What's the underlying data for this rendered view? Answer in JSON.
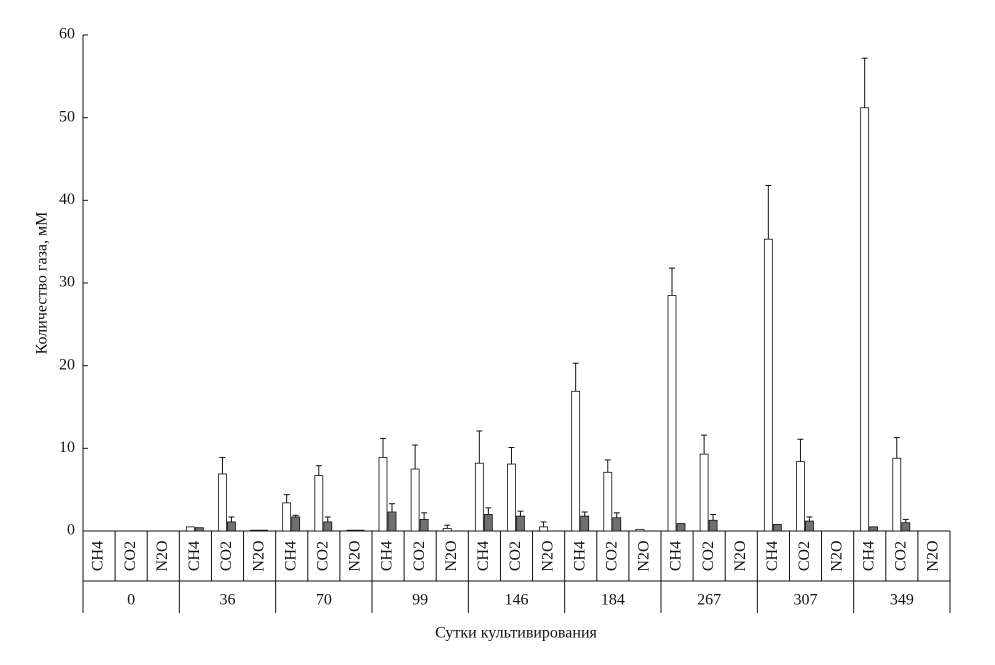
{
  "chart_data": {
    "type": "bar",
    "y_label": "Количество газа, мМ",
    "x_label": "Сутки культивирования",
    "groups": [
      "0",
      "36",
      "70",
      "99",
      "146",
      "184",
      "267",
      "307",
      "349"
    ],
    "categories": [
      "CH4",
      "CO2",
      "N2O",
      "CH4",
      "CO2",
      "N2O",
      "CH4",
      "CO2",
      "N2O",
      "CH4",
      "CO2",
      "N2O",
      "CH4",
      "CO2",
      "N2O",
      "CH4",
      "CO2",
      "N2O",
      "CH4",
      "CO2",
      "N2O",
      "CH4",
      "CO2",
      "N2O",
      "CH4",
      "CO2",
      "N2O"
    ],
    "series": [
      {
        "color": "#ffffff",
        "values": [
          0,
          0,
          0,
          0.5,
          6.9,
          0.1,
          3.4,
          6.7,
          0.1,
          8.9,
          7.5,
          0.3,
          8.2,
          8.1,
          0.5,
          16.9,
          7.1,
          0.2,
          28.5,
          9.3,
          0,
          35.3,
          8.4,
          0,
          51.2,
          8.8,
          0
        ],
        "errors": [
          null,
          null,
          null,
          null,
          2.0,
          null,
          1.0,
          1.2,
          null,
          2.3,
          2.9,
          0.4,
          3.9,
          2.0,
          0.6,
          3.4,
          1.5,
          null,
          3.3,
          2.3,
          null,
          6.5,
          2.7,
          null,
          6.0,
          2.5,
          null
        ]
      },
      {
        "color": "#707070",
        "values": [
          0,
          0,
          0,
          0.4,
          1.1,
          0.1,
          1.7,
          1.1,
          0.1,
          2.3,
          1.4,
          0,
          2.0,
          1.8,
          0,
          1.8,
          1.6,
          0,
          0.9,
          1.3,
          0,
          0.8,
          1.2,
          0,
          0.5,
          1.0,
          0
        ],
        "errors": [
          null,
          null,
          null,
          null,
          0.6,
          null,
          0.2,
          0.6,
          null,
          1.0,
          0.8,
          null,
          0.8,
          0.6,
          null,
          0.5,
          0.6,
          null,
          null,
          0.7,
          null,
          null,
          0.5,
          null,
          null,
          0.4,
          null
        ]
      }
    ],
    "ylim": [
      0,
      60
    ],
    "yticks": [
      0,
      10,
      20,
      30,
      40,
      50,
      60
    ]
  }
}
